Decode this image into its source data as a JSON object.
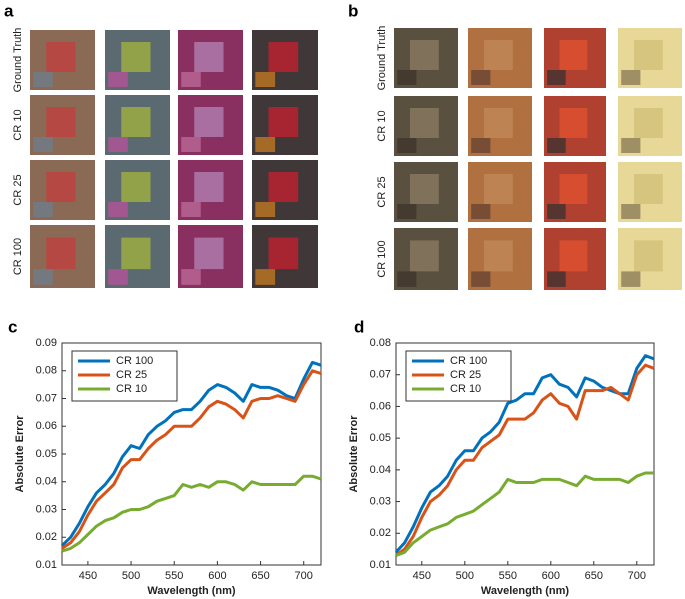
{
  "panels": [
    {
      "label": "a",
      "rows": [
        "Ground Truth",
        "CR 10",
        "CR 25",
        "CR 100"
      ]
    },
    {
      "label": "b",
      "rows": [
        "Ground Truth",
        "CR 10",
        "CR 25",
        "CR 100"
      ]
    }
  ],
  "chart_data": [
    {
      "type": "line",
      "label": "c",
      "xlabel": "Wavelength (nm)",
      "ylabel": "Absolute Error",
      "x": [
        420,
        430,
        440,
        450,
        460,
        470,
        480,
        490,
        500,
        510,
        520,
        530,
        540,
        550,
        560,
        570,
        580,
        590,
        600,
        610,
        620,
        630,
        640,
        650,
        660,
        670,
        680,
        690,
        700,
        710,
        720
      ],
      "series": [
        {
          "name": "CR 100",
          "color": "#0072BD",
          "values": [
            0.017,
            0.02,
            0.025,
            0.031,
            0.036,
            0.039,
            0.043,
            0.049,
            0.053,
            0.052,
            0.057,
            0.06,
            0.062,
            0.065,
            0.066,
            0.066,
            0.069,
            0.073,
            0.075,
            0.074,
            0.072,
            0.069,
            0.075,
            0.074,
            0.074,
            0.073,
            0.071,
            0.07,
            0.077,
            0.083,
            0.082
          ]
        },
        {
          "name": "CR 25",
          "color": "#D95319",
          "values": [
            0.016,
            0.018,
            0.022,
            0.028,
            0.033,
            0.036,
            0.039,
            0.045,
            0.048,
            0.048,
            0.052,
            0.055,
            0.057,
            0.06,
            0.06,
            0.06,
            0.063,
            0.067,
            0.069,
            0.068,
            0.066,
            0.063,
            0.069,
            0.07,
            0.07,
            0.071,
            0.07,
            0.069,
            0.075,
            0.08,
            0.079
          ]
        },
        {
          "name": "CR 10",
          "color": "#77AC30",
          "values": [
            0.015,
            0.016,
            0.018,
            0.021,
            0.024,
            0.026,
            0.027,
            0.029,
            0.03,
            0.03,
            0.031,
            0.033,
            0.034,
            0.035,
            0.039,
            0.038,
            0.039,
            0.038,
            0.04,
            0.04,
            0.039,
            0.037,
            0.04,
            0.039,
            0.039,
            0.039,
            0.039,
            0.039,
            0.042,
            0.042,
            0.041
          ]
        }
      ],
      "xlim": [
        420,
        720
      ],
      "xticks": [
        450,
        500,
        550,
        600,
        650,
        700
      ],
      "ylim": [
        0.01,
        0.09
      ],
      "yticks": [
        0.01,
        0.02,
        0.03,
        0.04,
        0.05,
        0.06,
        0.07,
        0.08,
        0.09
      ],
      "legend": "upper left"
    },
    {
      "type": "line",
      "label": "d",
      "xlabel": "Wavelength (nm)",
      "ylabel": "Absolute Error",
      "x": [
        420,
        430,
        440,
        450,
        460,
        470,
        480,
        490,
        500,
        510,
        520,
        530,
        540,
        550,
        560,
        570,
        580,
        590,
        600,
        610,
        620,
        630,
        640,
        650,
        660,
        670,
        680,
        690,
        700,
        710,
        720
      ],
      "series": [
        {
          "name": "CR 100",
          "color": "#0072BD",
          "values": [
            0.014,
            0.017,
            0.022,
            0.028,
            0.033,
            0.035,
            0.038,
            0.043,
            0.046,
            0.046,
            0.05,
            0.052,
            0.055,
            0.061,
            0.062,
            0.064,
            0.064,
            0.069,
            0.07,
            0.067,
            0.066,
            0.063,
            0.069,
            0.068,
            0.066,
            0.065,
            0.064,
            0.064,
            0.072,
            0.076,
            0.075
          ]
        },
        {
          "name": "CR 25",
          "color": "#D95319",
          "values": [
            0.013,
            0.015,
            0.019,
            0.025,
            0.03,
            0.032,
            0.035,
            0.04,
            0.043,
            0.043,
            0.047,
            0.049,
            0.051,
            0.056,
            0.056,
            0.056,
            0.058,
            0.062,
            0.064,
            0.061,
            0.06,
            0.056,
            0.065,
            0.065,
            0.065,
            0.066,
            0.064,
            0.062,
            0.07,
            0.073,
            0.072
          ]
        },
        {
          "name": "CR 10",
          "color": "#77AC30",
          "values": [
            0.013,
            0.014,
            0.017,
            0.019,
            0.021,
            0.022,
            0.023,
            0.025,
            0.026,
            0.027,
            0.029,
            0.031,
            0.033,
            0.037,
            0.036,
            0.036,
            0.036,
            0.037,
            0.037,
            0.037,
            0.036,
            0.035,
            0.038,
            0.037,
            0.037,
            0.037,
            0.037,
            0.036,
            0.038,
            0.039,
            0.039
          ]
        }
      ],
      "xlim": [
        420,
        720
      ],
      "xticks": [
        450,
        500,
        550,
        600,
        650,
        700
      ],
      "ylim": [
        0.01,
        0.08
      ],
      "yticks": [
        0.01,
        0.02,
        0.03,
        0.04,
        0.05,
        0.06,
        0.07,
        0.08
      ],
      "legend": "upper left"
    }
  ]
}
